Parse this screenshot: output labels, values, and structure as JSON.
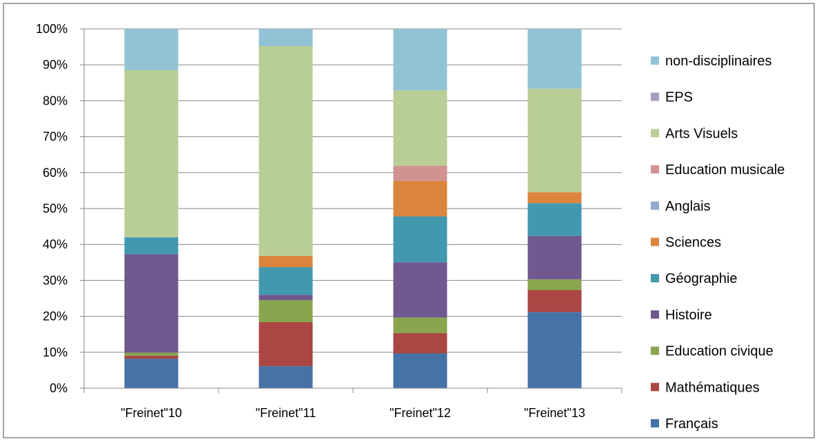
{
  "chart_data": {
    "type": "bar",
    "stacked": true,
    "percent": true,
    "categories": [
      "\"Freinet\"10",
      "\"Freinet\"11",
      "\"Freinet\"12",
      "\"Freinet\"13"
    ],
    "y_ticks": [
      "0%",
      "10%",
      "20%",
      "30%",
      "40%",
      "50%",
      "60%",
      "70%",
      "80%",
      "90%",
      "100%"
    ],
    "ylim": [
      0,
      100
    ],
    "grid": true,
    "legend_position": "right",
    "series": [
      {
        "name": "Français",
        "color": "#4572A7",
        "values": [
          8.2,
          6.1,
          9.7,
          21.2
        ]
      },
      {
        "name": "Mathématiques",
        "color": "#AA4643",
        "values": [
          0.8,
          12.3,
          5.7,
          6.1
        ]
      },
      {
        "name": "Education civique",
        "color": "#89A54E",
        "values": [
          0.9,
          6.1,
          4.3,
          3.0
        ]
      },
      {
        "name": "Histoire",
        "color": "#71588F",
        "values": [
          27.4,
          1.5,
          15.4,
          12.1
        ]
      },
      {
        "name": "Géographie",
        "color": "#4198AF",
        "values": [
          4.7,
          7.7,
          12.8,
          9.1
        ]
      },
      {
        "name": "Sciences",
        "color": "#DB843D",
        "values": [
          0,
          3.1,
          9.9,
          3.0
        ]
      },
      {
        "name": "Anglais",
        "color": "#93A9CF",
        "values": [
          0,
          0,
          0,
          0
        ]
      },
      {
        "name": "Education musicale",
        "color": "#D19392",
        "values": [
          0,
          0,
          4.2,
          0
        ]
      },
      {
        "name": "Arts Visuels",
        "color": "#B9CD96",
        "values": [
          46.5,
          58.4,
          21.1,
          28.9
        ]
      },
      {
        "name": "EPS",
        "color": "#A99BBD",
        "values": [
          0,
          0,
          0,
          0
        ]
      },
      {
        "name": "non-disciplinaires",
        "color": "#92C3D4",
        "values": [
          11.5,
          4.8,
          17.1,
          16.6
        ]
      }
    ]
  }
}
